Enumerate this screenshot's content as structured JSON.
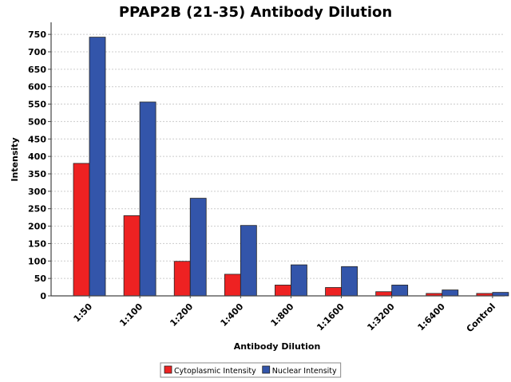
{
  "chart_data": {
    "type": "bar",
    "title": "PPAP2B (21-35) Antibody Dilution",
    "xlabel": "Antibody Dilution",
    "ylabel": "Intensity",
    "categories": [
      "1:50",
      "1:100",
      "1:200",
      "1:400",
      "1:800",
      "1:1600",
      "1:3200",
      "1:6400",
      "Control"
    ],
    "series": [
      {
        "name": "Cytoplasmic Intensity",
        "color": "#ee2222",
        "values": [
          380,
          230,
          99,
          62,
          31,
          24,
          12,
          7,
          7
        ]
      },
      {
        "name": "Nuclear Intensity",
        "color": "#3355aa",
        "values": [
          742,
          556,
          280,
          202,
          89,
          84,
          31,
          17,
          10
        ]
      }
    ],
    "ylim": [
      0,
      780
    ],
    "yticks": [
      0,
      50,
      100,
      150,
      200,
      250,
      300,
      350,
      400,
      450,
      500,
      550,
      600,
      650,
      700,
      750
    ],
    "grid": true,
    "legend_position": "bottom"
  }
}
